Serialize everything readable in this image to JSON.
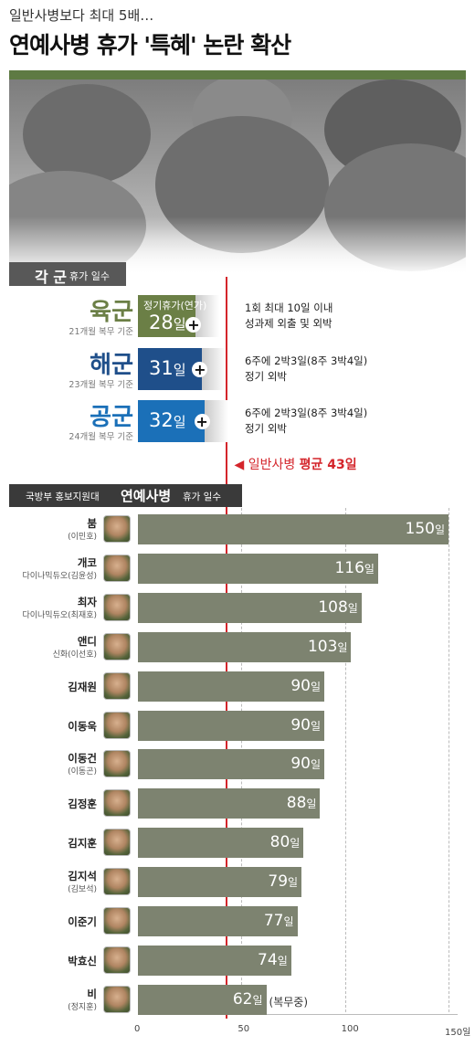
{
  "subtitle": "일반사병보다 최대 5배…",
  "title": "연예사병 휴가 '특혜' 논란 확산",
  "colors": {
    "army": "#6b7f46",
    "navy": "#1f4f8a",
    "airforce": "#1b70b8",
    "celeb_bar": "#7d8370",
    "average_line": "#d4252b",
    "header_green": "#5e7a43"
  },
  "branch_section": {
    "title_big": "각 군",
    "title_small": "휴가 일수",
    "leave_header": "정기휴가(연가)",
    "branches": [
      {
        "name": "육군",
        "service": "21개월 복무 기준",
        "days": 28,
        "label_num": "28",
        "label_unit": "일",
        "note1": "1회 최대 10일 이내",
        "note2": "성과제 외출 및 외박",
        "color": "#6b7f46",
        "icon": "plus-icon",
        "plus": "+"
      },
      {
        "name": "해군",
        "service": "23개월 복무 기준",
        "days": 31,
        "label_num": "31",
        "label_unit": "일",
        "note1": "6주에 2박3일(8주 3박4일)",
        "note2": "정기 외박",
        "color": "#1f4f8a",
        "icon": "plus-icon",
        "plus": "+"
      },
      {
        "name": "공군",
        "service": "24개월 복무 기준",
        "days": 32,
        "label_num": "32",
        "label_unit": "일",
        "note1": "6주에 2박3일(8주 3박4일)",
        "note2": "정기 외박",
        "color": "#1b70b8",
        "icon": "plus-icon",
        "plus": "+"
      }
    ]
  },
  "average": {
    "arrow": "◀",
    "text_pre": "일반사병 ",
    "text_bold": "평균 43일",
    "value": 43
  },
  "celeb_section": {
    "title_prefix": "국방부 홍보지원대",
    "title_bold": "연예사병",
    "title_suffix": "휴가 일수"
  },
  "chart_data": {
    "type": "bar",
    "orientation": "horizontal",
    "title": "연예사병 휴가 '특혜' 논란 확산",
    "xlim": [
      0,
      150
    ],
    "xticks": [
      "0",
      "50",
      "100",
      "150일"
    ],
    "xtick_values": [
      0,
      50,
      100,
      150
    ],
    "reference_line": {
      "label": "일반사병 평균 43일",
      "value": 43
    },
    "series": [
      {
        "values": [
          150,
          116,
          108,
          103,
          90,
          90,
          90,
          88,
          80,
          79,
          77,
          74,
          62
        ]
      }
    ],
    "categories": [
      "붐",
      "개코",
      "최자",
      "앤디",
      "김재원",
      "이동욱",
      "이동건",
      "김정훈",
      "김지훈",
      "김지석",
      "이준기",
      "박효신",
      "비"
    ],
    "celebs": [
      {
        "name": "붐",
        "sub": "(이민호)",
        "days": 150,
        "label_num": "150",
        "label_unit": "일",
        "note": ""
      },
      {
        "name": "개코",
        "sub": "다이나믹듀오(김윤성)",
        "days": 116,
        "label_num": "116",
        "label_unit": "일",
        "note": ""
      },
      {
        "name": "최자",
        "sub": "다이나믹듀오(최재호)",
        "days": 108,
        "label_num": "108",
        "label_unit": "일",
        "note": ""
      },
      {
        "name": "앤디",
        "sub": "신화(이선호)",
        "days": 103,
        "label_num": "103",
        "label_unit": "일",
        "note": ""
      },
      {
        "name": "김재원",
        "sub": "",
        "days": 90,
        "label_num": "90",
        "label_unit": "일",
        "note": ""
      },
      {
        "name": "이동욱",
        "sub": "",
        "days": 90,
        "label_num": "90",
        "label_unit": "일",
        "note": ""
      },
      {
        "name": "이동건",
        "sub": "(이동곤)",
        "days": 90,
        "label_num": "90",
        "label_unit": "일",
        "note": ""
      },
      {
        "name": "김정훈",
        "sub": "",
        "days": 88,
        "label_num": "88",
        "label_unit": "일",
        "note": ""
      },
      {
        "name": "김지훈",
        "sub": "",
        "days": 80,
        "label_num": "80",
        "label_unit": "일",
        "note": ""
      },
      {
        "name": "김지석",
        "sub": "(김보석)",
        "days": 79,
        "label_num": "79",
        "label_unit": "일",
        "note": ""
      },
      {
        "name": "이준기",
        "sub": "",
        "days": 77,
        "label_num": "77",
        "label_unit": "일",
        "note": ""
      },
      {
        "name": "박효신",
        "sub": "",
        "days": 74,
        "label_num": "74",
        "label_unit": "일",
        "note": ""
      },
      {
        "name": "비",
        "sub": "(정지훈)",
        "days": 62,
        "label_num": "62",
        "label_unit": "일",
        "note": "(복무중)"
      }
    ]
  }
}
